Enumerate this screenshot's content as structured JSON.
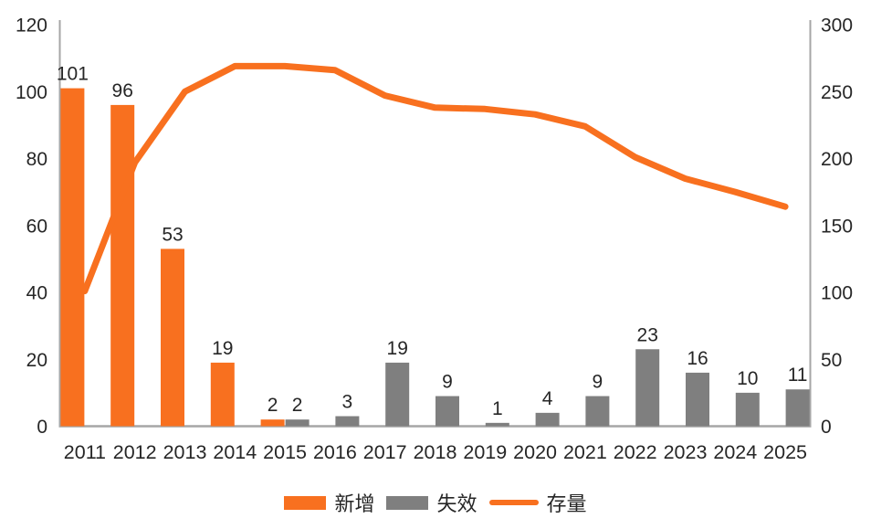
{
  "chart_data": {
    "type": "bar",
    "subtype": "combo-bar-line",
    "title": "",
    "xlabel": "",
    "ylabel_left": "",
    "ylabel_right": "",
    "grid": false,
    "legend_position": "bottom",
    "categories": [
      "2011",
      "2012",
      "2013",
      "2014",
      "2015",
      "2016",
      "2017",
      "2018",
      "2019",
      "2020",
      "2021",
      "2022",
      "2023",
      "2024",
      "2025"
    ],
    "series": [
      {
        "name": "新增",
        "key": "new",
        "type": "bar",
        "axis": "left",
        "color": "#F8701F",
        "values": [
          101,
          96,
          53,
          19,
          2,
          0,
          0,
          0,
          0,
          0,
          0,
          0,
          0,
          0,
          0
        ]
      },
      {
        "name": "失效",
        "key": "expired",
        "type": "bar",
        "axis": "left",
        "color": "#7F7F7F",
        "values": [
          0,
          0,
          0,
          0,
          2,
          3,
          19,
          9,
          1,
          4,
          9,
          23,
          16,
          10,
          11
        ]
      },
      {
        "name": "存量",
        "key": "stock",
        "type": "line",
        "axis": "right",
        "color": "#F8701F",
        "values": [
          101,
          197,
          250,
          269,
          269,
          266,
          247,
          238,
          237,
          233,
          224,
          201,
          185,
          175,
          164
        ]
      }
    ],
    "left_axis": {
      "min": 0,
      "max": 120,
      "ticks": [
        0,
        20,
        40,
        60,
        80,
        100,
        120
      ]
    },
    "right_axis": {
      "min": 0,
      "max": 300,
      "ticks": [
        0,
        50,
        100,
        150,
        200,
        250,
        300
      ]
    },
    "colors": {
      "axis_line": "#A6A6A6",
      "tick_text": "#262626",
      "value_label_text": "#262626"
    }
  },
  "legend": {
    "items": [
      "新增",
      "失效",
      "存量"
    ]
  }
}
